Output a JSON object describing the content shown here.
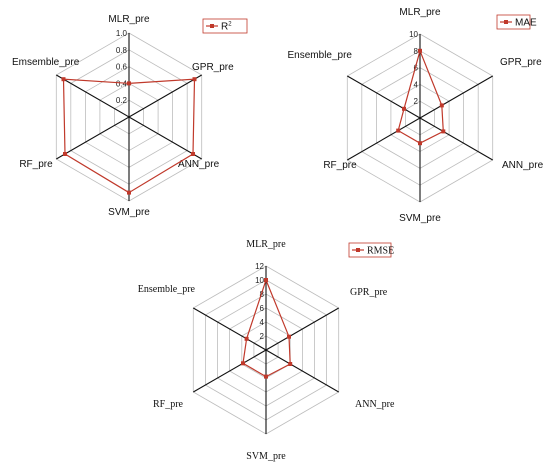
{
  "colors": {
    "series": "#c0392b",
    "grid": "#bdbdbd",
    "spoke": "#111111"
  },
  "chart_data": [
    {
      "type": "radar",
      "axes": [
        "MLR_pre",
        "GPR_pre",
        "ANN_pre",
        "SVM_pre",
        "RF_pre",
        "Emsemble_pre"
      ],
      "ticks": [
        "0.2",
        "0.4",
        "0.6",
        "0.8",
        "1.0"
      ],
      "rlim": [
        0,
        1.0
      ],
      "legend": {
        "base": "R",
        "sup": "2"
      },
      "series": [
        {
          "name": "R2",
          "values": [
            0.4,
            0.9,
            0.88,
            0.9,
            0.88,
            0.9
          ]
        }
      ]
    },
    {
      "type": "radar",
      "axes": [
        "MLR_pre",
        "GPR_pre",
        "ANN_pre",
        "SVM_pre",
        "RF_pre",
        "Ensemble_pre"
      ],
      "ticks": [
        "2",
        "4",
        "6",
        "8",
        "10"
      ],
      "rlim": [
        0,
        10
      ],
      "legend": {
        "base": "MAE",
        "sup": ""
      },
      "series": [
        {
          "name": "MAE",
          "values": [
            8.0,
            3.0,
            3.2,
            3.0,
            3.0,
            2.2
          ]
        }
      ]
    },
    {
      "type": "radar",
      "axes": [
        "MLR_pre",
        "GPR_pre",
        "ANN_pre",
        "SVM_pre",
        "RF_pre",
        "Ensemble_pre"
      ],
      "ticks": [
        "2",
        "4",
        "6",
        "8",
        "10",
        "12"
      ],
      "rlim": [
        0,
        12
      ],
      "legend": {
        "base": "RMSE",
        "sup": ""
      },
      "series": [
        {
          "name": "RMSE",
          "values": [
            10.0,
            3.8,
            4.0,
            3.8,
            3.8,
            3.2
          ]
        }
      ]
    }
  ]
}
